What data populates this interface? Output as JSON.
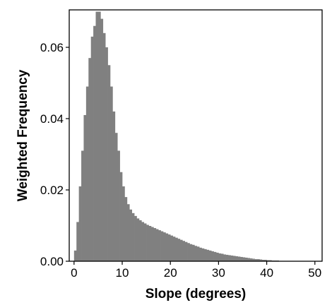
{
  "chart_data": {
    "type": "bar",
    "title": "",
    "xlabel": "Slope (degrees)",
    "ylabel": "Weighted Frequency",
    "xlim": [
      -1,
      51.5
    ],
    "ylim": [
      0,
      0.0705
    ],
    "xticks": [
      "0",
      "10",
      "20",
      "30",
      "40",
      "50"
    ],
    "yticks": [
      "0.00",
      "0.02",
      "0.04",
      "0.06"
    ],
    "xtick_values": [
      0,
      10,
      20,
      30,
      40,
      50
    ],
    "ytick_values": [
      0,
      0.02,
      0.04,
      0.06
    ],
    "grid": false,
    "bar_color": "#808080",
    "bin_width": 0.5,
    "bin_edges_start": 0,
    "values": [
      0.003,
      0.011,
      0.021,
      0.031,
      0.041,
      0.049,
      0.057,
      0.063,
      0.066,
      0.07,
      0.07,
      0.068,
      0.064,
      0.06,
      0.055,
      0.049,
      0.042,
      0.036,
      0.031,
      0.025,
      0.021,
      0.018,
      0.016,
      0.0145,
      0.0135,
      0.0127,
      0.012,
      0.0115,
      0.011,
      0.0106,
      0.0102,
      0.0099,
      0.0096,
      0.0093,
      0.009,
      0.0087,
      0.0084,
      0.0081,
      0.0078,
      0.0075,
      0.0072,
      0.0069,
      0.0066,
      0.0063,
      0.006,
      0.0057,
      0.0054,
      0.0051,
      0.0048,
      0.0046,
      0.0043,
      0.0041,
      0.0038,
      0.0036,
      0.0034,
      0.0032,
      0.003,
      0.0028,
      0.0026,
      0.0024,
      0.0022,
      0.0021,
      0.0019,
      0.0018,
      0.0017,
      0.0016,
      0.0015,
      0.0014,
      0.0013,
      0.0012,
      0.0011,
      0.001,
      0.0009,
      0.0008,
      0.0007,
      0.0006,
      0.0006,
      0.0005,
      0.0004,
      0.0004,
      0.0003,
      0.0003,
      0.0002,
      0.0002,
      0.0002,
      0.0001,
      0.0001,
      0.0001,
      0.0001,
      0.0001
    ]
  }
}
